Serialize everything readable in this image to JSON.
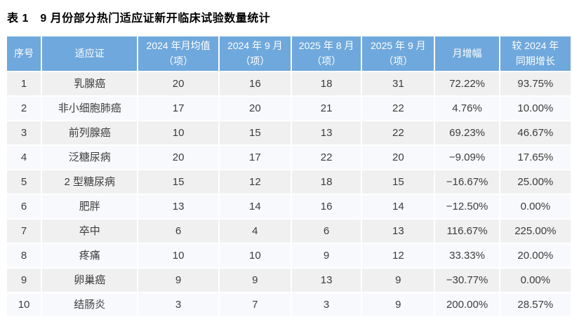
{
  "title": "表 1　9 月份部分热门适应证新开临床试验数量统计",
  "colors": {
    "header_bg": "#6FA8DC",
    "header_text": "#FFFFFF",
    "row_odd_bg": "#F0F0F1",
    "row_even_bg": "#F8F9FC",
    "body_text": "#3C3C3C",
    "title_text": "#000000"
  },
  "chart_data": {
    "type": "table",
    "title": "表 1　9 月份部分热门适应证新开临床试验数量统计",
    "columns": [
      "序号",
      "适应证",
      "2024 年月均值\n（项）",
      "2024 年 9 月\n（项）",
      "2025 年 8 月\n（项）",
      "2025 年 9 月\n（项）",
      "月增幅",
      "较 2024 年\n同期增长"
    ],
    "rows": [
      [
        "1",
        "乳腺癌",
        "20",
        "16",
        "18",
        "31",
        "72.22%",
        "93.75%"
      ],
      [
        "2",
        "非小细胞肺癌",
        "17",
        "20",
        "21",
        "22",
        "4.76%",
        "10.00%"
      ],
      [
        "3",
        "前列腺癌",
        "10",
        "15",
        "13",
        "22",
        "69.23%",
        "46.67%"
      ],
      [
        "4",
        "泛糖尿病",
        "20",
        "17",
        "22",
        "20",
        "−9.09%",
        "17.65%"
      ],
      [
        "5",
        "2 型糖尿病",
        "15",
        "12",
        "18",
        "15",
        "−16.67%",
        "25.00%"
      ],
      [
        "6",
        "肥胖",
        "13",
        "14",
        "16",
        "14",
        "−12.50%",
        "0.00%"
      ],
      [
        "7",
        "卒中",
        "6",
        "4",
        "6",
        "13",
        "116.67%",
        "225.00%"
      ],
      [
        "8",
        "疼痛",
        "10",
        "10",
        "9",
        "12",
        "33.33%",
        "20.00%"
      ],
      [
        "9",
        "卵巢癌",
        "9",
        "9",
        "13",
        "9",
        "−30.77%",
        "0.00%"
      ],
      [
        "10",
        "结肠炎",
        "3",
        "7",
        "3",
        "9",
        "200.00%",
        "28.57%"
      ]
    ]
  }
}
